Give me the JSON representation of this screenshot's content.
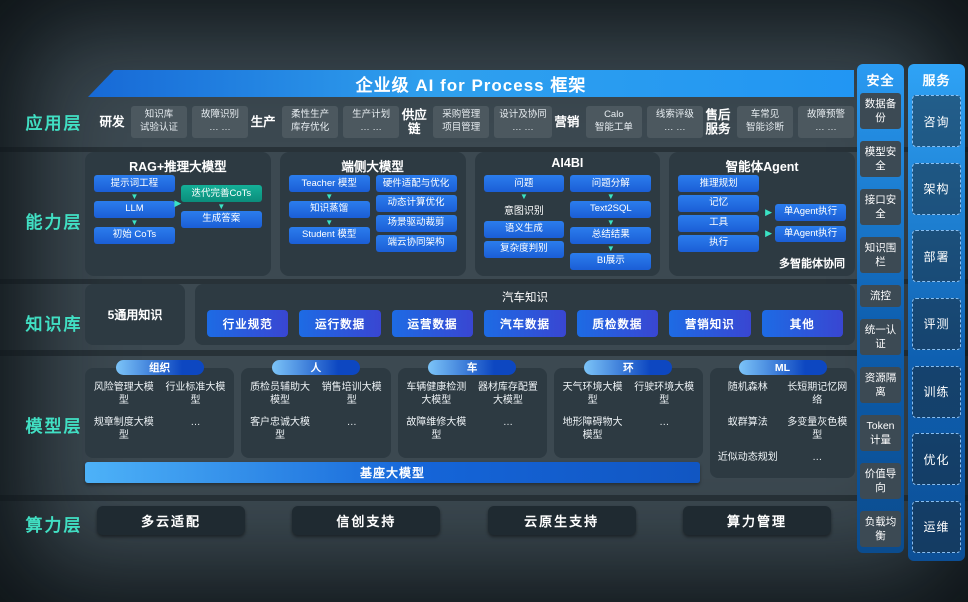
{
  "banner": {
    "title": "企业级 AI for Process 框架"
  },
  "layer_labels": [
    "应用层",
    "能力层",
    "知识库",
    "模型层",
    "算力层"
  ],
  "application": {
    "groups": [
      {
        "name": "研发",
        "chips": [
          [
            "知识库",
            "试验认证"
          ],
          [
            "故障识别",
            "… …"
          ]
        ]
      },
      {
        "name": "生产",
        "chips": [
          [
            "柔性生产",
            "库存优化"
          ],
          [
            "生产计划",
            "… …"
          ]
        ]
      },
      {
        "name": "供应链",
        "chips": [
          [
            "采购管理",
            "项目管理"
          ],
          [
            "设计及协同",
            "… …"
          ]
        ]
      },
      {
        "name": "营销",
        "chips": [
          [
            "Calo",
            "智能工单"
          ],
          [
            "线索评级",
            "… …"
          ]
        ]
      },
      {
        "name": "售后服务",
        "chips": [
          [
            "车常见",
            "智能诊断"
          ],
          [
            "故障预警",
            "… …"
          ]
        ]
      }
    ]
  },
  "capability": {
    "cards": [
      {
        "title": "RAG+推理大模型",
        "mid_arrow": true,
        "left": [
          {
            "t": "提示词工程",
            "k": "blue"
          },
          {
            "k": "arrow"
          },
          {
            "t": "LLM",
            "k": "blue"
          },
          {
            "k": "arrow"
          },
          {
            "t": "初始 CoTs",
            "k": "blue"
          }
        ],
        "right": [
          {
            "t": "迭代完善CoTs",
            "k": "teal"
          },
          {
            "k": "arrow"
          },
          {
            "t": "生成答案",
            "k": "blue"
          }
        ]
      },
      {
        "title": "端侧大模型",
        "left": [
          {
            "t": "Teacher 模型",
            "k": "blue"
          },
          {
            "k": "arrow"
          },
          {
            "t": "知识蒸馏",
            "k": "blue"
          },
          {
            "k": "arrow"
          },
          {
            "t": "Student 模型",
            "k": "blue"
          }
        ],
        "right": [
          {
            "t": "硬件适配与优化",
            "k": "blue"
          },
          {
            "t": "动态计算优化",
            "k": "blue"
          },
          {
            "t": "场景驱动裁剪",
            "k": "blue"
          },
          {
            "t": "端云协同架构",
            "k": "blue"
          }
        ]
      },
      {
        "title": "AI4BI",
        "left": [
          {
            "t": "问题",
            "k": "blue"
          },
          {
            "k": "arrow"
          },
          {
            "t": "意图识别",
            "k": "plain"
          },
          {
            "t": "语义生成",
            "k": "blue"
          },
          {
            "t": "复杂度判别",
            "k": "blue"
          }
        ],
        "right": [
          {
            "t": "问题分解",
            "k": "blue"
          },
          {
            "k": "arrow"
          },
          {
            "t": "Text2SQL",
            "k": "blue"
          },
          {
            "k": "arrow"
          },
          {
            "t": "总结结果",
            "k": "blue"
          },
          {
            "k": "arrow"
          },
          {
            "t": "BI展示",
            "k": "blue"
          }
        ]
      },
      {
        "title": "智能体Agent",
        "footer": "多智能体协同",
        "left": [
          {
            "t": "推理规划",
            "k": "blue"
          },
          {
            "t": "记忆",
            "k": "blue"
          },
          {
            "t": "工具",
            "k": "blue"
          },
          {
            "t": "执行",
            "k": "blue"
          }
        ],
        "right": [
          {
            "t": "单Agent执行",
            "k": "blue",
            "al": true
          },
          {
            "t": "单Agent执行",
            "k": "blue",
            "al": true
          }
        ]
      }
    ]
  },
  "knowledge": {
    "general": "5通用知识",
    "header": "汽车知识",
    "buttons": [
      "行业规范",
      "运行数据",
      "运营数据",
      "汽车数据",
      "质检数据",
      "营销知识",
      "其他"
    ]
  },
  "models": {
    "groups": [
      {
        "pill": "组织",
        "rows": [
          [
            "风险管理大模型",
            "行业标准大模型"
          ],
          [
            "规章制度大模型",
            "…"
          ]
        ]
      },
      {
        "pill": "人",
        "rows": [
          [
            "质检员辅助大模型",
            "销售培训大模型"
          ],
          [
            "客户忠诚大模型",
            "…"
          ]
        ]
      },
      {
        "pill": "车",
        "rows": [
          [
            "车辆健康检测大模型",
            "器材库存配置大模型"
          ],
          [
            "故障维修大模型",
            "…"
          ]
        ]
      },
      {
        "pill": "环",
        "rows": [
          [
            "天气环境大模型",
            "行驶环境大模型"
          ],
          [
            "地形障碍物大模型",
            "…"
          ]
        ]
      },
      {
        "pill": "ML",
        "rows": [
          [
            "随机森林",
            "长短期记忆网络"
          ],
          [
            "蚁群算法",
            "多变量灰色模型"
          ],
          [
            "近似动态规划",
            "…"
          ]
        ]
      }
    ],
    "base_bar": "基座大模型"
  },
  "compute": {
    "buttons": [
      "多云适配",
      "信创支持",
      "云原生支持",
      "算力管理"
    ]
  },
  "security": {
    "header": "安全",
    "items": [
      "数据备份",
      "模型安全",
      "接口安全",
      "知识围栏",
      "流控",
      "统一认证",
      "资源隔离",
      "Token计量",
      "价值导向",
      "负载均衡"
    ]
  },
  "services": {
    "header": "服务",
    "items": [
      "咨询",
      "架构",
      "部署",
      "评测",
      "训练",
      "优化",
      "运维"
    ]
  },
  "colors": {
    "accent_teal": "#41dfc3",
    "box_blue": "#1e6fe0",
    "box_teal": "#0fa58c",
    "banner_blue": "#2196f3",
    "background": "#3c4951"
  }
}
